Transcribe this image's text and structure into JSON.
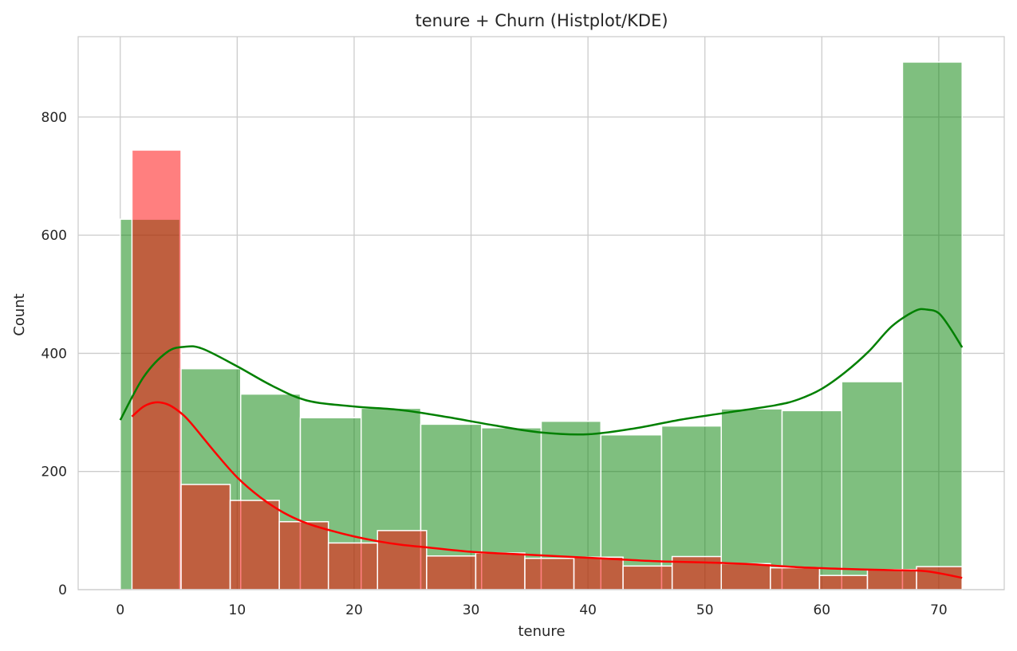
{
  "chart_data": {
    "type": "histogram",
    "title": "tenure + Churn (Histplot/KDE)",
    "xlabel": "tenure",
    "ylabel": "Count",
    "xlim": [
      -3.6,
      75.6
    ],
    "ylim": [
      0,
      936
    ],
    "xticks": [
      0,
      10,
      20,
      30,
      40,
      50,
      60,
      70
    ],
    "yticks": [
      0,
      200,
      400,
      600,
      800
    ],
    "grid": true,
    "colors": {
      "churn_no_fill": "#7fbf7f",
      "churn_no_line": "#008000",
      "churn_yes_fill": "#ff8080",
      "churn_yes_line": "#ff0000",
      "overlap_fill": "#7f7f3f",
      "grid": "#cccccc",
      "spine": "#cccccc"
    },
    "series": [
      {
        "color_key": "green",
        "fill": "#008000",
        "line": "#008000",
        "bins": [
          {
            "x0": 0.0,
            "x1": 5.1,
            "count": 627
          },
          {
            "x0": 5.1,
            "x1": 10.3,
            "count": 374
          },
          {
            "x0": 10.3,
            "x1": 15.4,
            "count": 331
          },
          {
            "x0": 15.4,
            "x1": 20.6,
            "count": 291
          },
          {
            "x0": 20.6,
            "x1": 25.7,
            "count": 307
          },
          {
            "x0": 25.7,
            "x1": 30.9,
            "count": 280
          },
          {
            "x0": 30.9,
            "x1": 36.0,
            "count": 274
          },
          {
            "x0": 36.0,
            "x1": 41.1,
            "count": 285
          },
          {
            "x0": 41.1,
            "x1": 46.3,
            "count": 262
          },
          {
            "x0": 46.3,
            "x1": 51.4,
            "count": 277
          },
          {
            "x0": 51.4,
            "x1": 56.6,
            "count": 306
          },
          {
            "x0": 56.6,
            "x1": 61.7,
            "count": 303
          },
          {
            "x0": 61.7,
            "x1": 66.9,
            "count": 352
          },
          {
            "x0": 66.9,
            "x1": 72.0,
            "count": 893
          }
        ],
        "kde": [
          [
            0,
            287
          ],
          [
            2,
            360
          ],
          [
            4,
            402
          ],
          [
            5.5,
            411
          ],
          [
            7,
            408
          ],
          [
            10,
            378
          ],
          [
            13,
            345
          ],
          [
            16,
            320
          ],
          [
            20,
            310
          ],
          [
            24,
            304
          ],
          [
            28,
            292
          ],
          [
            32,
            278
          ],
          [
            36,
            266
          ],
          [
            40,
            263
          ],
          [
            44,
            273
          ],
          [
            48,
            288
          ],
          [
            52,
            300
          ],
          [
            56,
            312
          ],
          [
            58,
            322
          ],
          [
            60,
            340
          ],
          [
            62,
            368
          ],
          [
            64,
            403
          ],
          [
            66,
            446
          ],
          [
            68,
            472
          ],
          [
            69,
            474
          ],
          [
            70,
            468
          ],
          [
            71,
            442
          ],
          [
            72,
            410
          ]
        ]
      },
      {
        "color_key": "red",
        "fill": "#ff0000",
        "line": "#ff0000",
        "bins": [
          {
            "x0": 1.0,
            "x1": 5.2,
            "count": 744
          },
          {
            "x0": 5.2,
            "x1": 9.4,
            "count": 178
          },
          {
            "x0": 9.4,
            "x1": 13.6,
            "count": 151
          },
          {
            "x0": 13.6,
            "x1": 17.8,
            "count": 115
          },
          {
            "x0": 17.8,
            "x1": 22.0,
            "count": 79
          },
          {
            "x0": 22.0,
            "x1": 26.2,
            "count": 100
          },
          {
            "x0": 26.2,
            "x1": 30.4,
            "count": 57
          },
          {
            "x0": 30.4,
            "x1": 34.6,
            "count": 62
          },
          {
            "x0": 34.6,
            "x1": 38.8,
            "count": 53
          },
          {
            "x0": 38.8,
            "x1": 43.0,
            "count": 55
          },
          {
            "x0": 43.0,
            "x1": 47.2,
            "count": 40
          },
          {
            "x0": 47.2,
            "x1": 51.4,
            "count": 56
          },
          {
            "x0": 51.4,
            "x1": 55.6,
            "count": 44
          },
          {
            "x0": 55.6,
            "x1": 59.8,
            "count": 37
          },
          {
            "x0": 59.8,
            "x1": 63.9,
            "count": 24
          },
          {
            "x0": 63.9,
            "x1": 68.1,
            "count": 34
          },
          {
            "x0": 68.1,
            "x1": 72.0,
            "count": 39
          }
        ],
        "kde": [
          [
            1,
            293
          ],
          [
            2,
            310
          ],
          [
            3,
            317
          ],
          [
            4,
            314
          ],
          [
            5,
            302
          ],
          [
            6,
            283
          ],
          [
            8,
            235
          ],
          [
            10,
            190
          ],
          [
            12,
            156
          ],
          [
            14,
            130
          ],
          [
            16,
            112
          ],
          [
            18,
            100
          ],
          [
            20,
            90
          ],
          [
            22,
            82
          ],
          [
            24,
            76
          ],
          [
            26,
            72
          ],
          [
            30,
            64
          ],
          [
            34,
            60
          ],
          [
            38,
            56
          ],
          [
            42,
            52
          ],
          [
            46,
            48
          ],
          [
            50,
            46
          ],
          [
            54,
            43
          ],
          [
            58,
            38
          ],
          [
            62,
            35
          ],
          [
            66,
            33
          ],
          [
            69,
            31
          ],
          [
            72,
            20
          ]
        ]
      }
    ]
  }
}
